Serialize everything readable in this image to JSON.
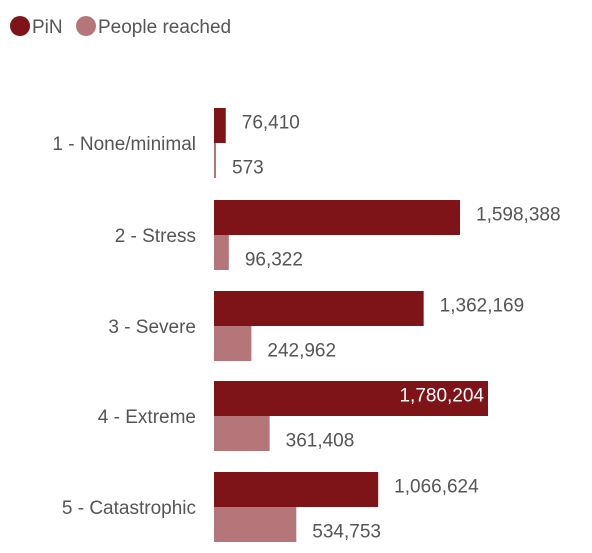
{
  "chart_data": {
    "type": "bar",
    "orientation": "horizontal",
    "categories": [
      "1 - None/minimal",
      "2 - Stress",
      "3 - Severe",
      "4 - Extreme",
      "5 - Catastrophic"
    ],
    "series": [
      {
        "name": "PiN",
        "color": "#7f1418",
        "values": [
          76410,
          1598388,
          1362169,
          1780204,
          1066624
        ],
        "labels": [
          "76,410",
          "1,598,388",
          "1,362,169",
          "1,780,204",
          "1,066,624"
        ]
      },
      {
        "name": "People reached",
        "color": "#b5767a",
        "values": [
          573,
          96322,
          242962,
          361408,
          534753
        ],
        "labels": [
          "573",
          "96,322",
          "242,962",
          "361,408",
          "534,753"
        ]
      }
    ],
    "legend": "top-left",
    "grid": false
  }
}
